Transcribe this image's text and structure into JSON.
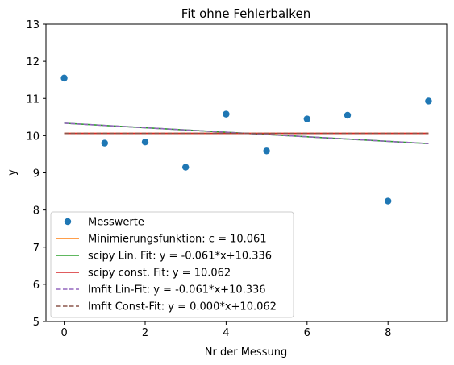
{
  "chart_data": {
    "type": "scatter",
    "title": "Fit ohne Fehlerbalken",
    "xlabel": "Nr der Messung",
    "ylabel": "y",
    "xlim": [
      -0.45,
      9.45
    ],
    "ylim": [
      5,
      13
    ],
    "xticks": [
      0,
      2,
      4,
      6,
      8
    ],
    "yticks": [
      5,
      6,
      7,
      8,
      9,
      10,
      11,
      12,
      13
    ],
    "grid": false,
    "legend_position": "lower-left",
    "points": {
      "name": "Messwerte",
      "color": "#1f77b4",
      "x": [
        0,
        1,
        2,
        3,
        4,
        5,
        6,
        7,
        8,
        9
      ],
      "y": [
        11.55,
        9.8,
        9.83,
        9.15,
        10.58,
        9.59,
        10.45,
        10.55,
        8.24,
        10.93
      ]
    },
    "lines": [
      {
        "name": "Minimierungsfunktion: c = 10.061",
        "color": "#ff7f0e",
        "dash": "solid",
        "x": [
          0,
          9
        ],
        "y": [
          10.061,
          10.061
        ]
      },
      {
        "name": "scipy Lin. Fit: y = -0.061*x+10.336",
        "color": "#2ca02c",
        "dash": "solid",
        "x": [
          0,
          9
        ],
        "y": [
          10.336,
          9.787
        ]
      },
      {
        "name": "scipy const. Fit: y = 10.062",
        "color": "#d62728",
        "dash": "solid",
        "x": [
          0,
          9
        ],
        "y": [
          10.062,
          10.062
        ]
      },
      {
        "name": "lmfit Lin-Fit: y = -0.061*x+10.336",
        "color": "#9467bd",
        "dash": "dashed",
        "x": [
          0,
          9
        ],
        "y": [
          10.336,
          9.787
        ]
      },
      {
        "name": "lmfit Const-Fit: y = 0.000*x+10.062",
        "color": "#8c564b",
        "dash": "dashed",
        "x": [
          0,
          9
        ],
        "y": [
          10.062,
          10.062
        ]
      }
    ]
  }
}
